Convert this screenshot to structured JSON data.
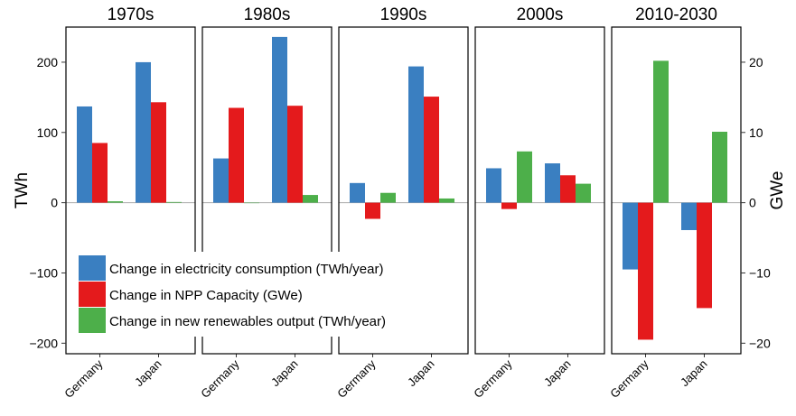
{
  "chart_data": {
    "type": "bar",
    "facets": [
      "1970s",
      "1980s",
      "1990s",
      "2000s",
      "2010-2030"
    ],
    "categories": [
      "Germany",
      "Japan"
    ],
    "ylabel_left": "TWh",
    "ylabel_right": "GWe",
    "ylim_left": [
      -215,
      250
    ],
    "ylim_right": [
      -21.5,
      25
    ],
    "yticks_left": [
      -200,
      -100,
      0,
      100,
      200
    ],
    "yticks_left_labels": [
      "−200",
      "−100",
      "0",
      "100",
      "200"
    ],
    "yticks_right": [
      -20,
      -10,
      0,
      10,
      20
    ],
    "yticks_right_labels": [
      "−20",
      "−10",
      "0",
      "10",
      "20"
    ],
    "grid": false,
    "legend_position": "bottom-left",
    "series": [
      {
        "name": "Change in electricity consumption (TWh/year)",
        "color": "#3a7fc1",
        "axis": "left",
        "values": [
          [
            137,
            200
          ],
          [
            63,
            236
          ],
          [
            28,
            194
          ],
          [
            49,
            56
          ],
          [
            -95,
            -39
          ]
        ]
      },
      {
        "name": "Change in NPP Capacity (GWe)",
        "color": "#e41a1c",
        "axis": "right",
        "values": [
          [
            8.5,
            14.3
          ],
          [
            13.5,
            13.8
          ],
          [
            -2.3,
            15.1
          ],
          [
            -0.9,
            3.9
          ],
          [
            -19.5,
            -15.0
          ]
        ]
      },
      {
        "name": "Change in new renewables output (TWh/year)",
        "color": "#4daf4a",
        "axis": "left",
        "values": [
          [
            2,
            1
          ],
          [
            0,
            11
          ],
          [
            14,
            6
          ],
          [
            73,
            27
          ],
          [
            202,
            101
          ]
        ]
      }
    ]
  }
}
